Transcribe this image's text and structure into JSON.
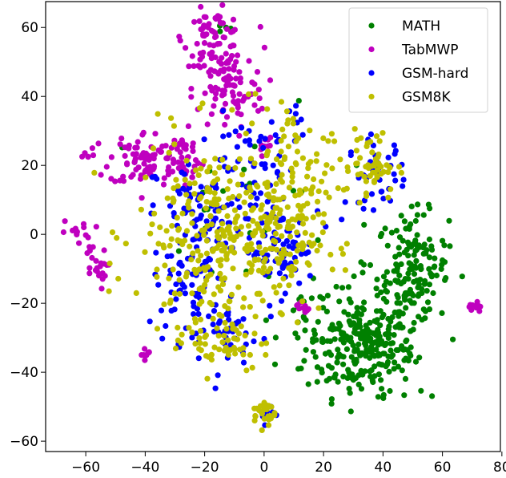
{
  "chart_data": {
    "type": "scatter",
    "title": "",
    "xlabel": "",
    "ylabel": "",
    "xlim": [
      -73.5,
      79.5
    ],
    "ylim": [
      -63,
      67.5
    ],
    "xticks": [
      -60,
      -40,
      -20,
      0,
      20,
      40,
      60,
      80
    ],
    "yticks": [
      -60,
      -40,
      -20,
      0,
      20,
      40,
      60
    ],
    "xtick_labels": [
      "−60",
      "−40",
      "−20",
      "0",
      "20",
      "40",
      "60",
      "80"
    ],
    "ytick_labels": [
      "−60",
      "−40",
      "−20",
      "0",
      "20",
      "40",
      "60"
    ],
    "grid": false,
    "legend": "top-right",
    "series": [
      {
        "name": "MATH",
        "color": "#008000",
        "clusters": [
          {
            "cx": 32,
            "cy": -33,
            "sx": 9,
            "sy": 7,
            "n": 200
          },
          {
            "cx": 50,
            "cy": -10,
            "sx": 6,
            "sy": 8,
            "n": 150
          },
          {
            "cx": 38,
            "cy": -30,
            "sx": 10,
            "sy": 10,
            "n": 80
          },
          {
            "cx": 15,
            "cy": -25,
            "sx": 5,
            "sy": 5,
            "n": 20
          },
          {
            "cx": -5,
            "cy": 10,
            "sx": 15,
            "sy": 15,
            "n": 25
          },
          {
            "cx": -15,
            "cy": 60,
            "sx": 3,
            "sy": 1,
            "n": 4
          }
        ]
      },
      {
        "name": "TabMWP",
        "color": "#bf00bf",
        "clusters": [
          {
            "cx": -17,
            "cy": 57,
            "sx": 5,
            "sy": 4,
            "n": 70
          },
          {
            "cx": -12,
            "cy": 42,
            "sx": 6,
            "sy": 6,
            "n": 90
          },
          {
            "cx": -40,
            "cy": 22,
            "sx": 6,
            "sy": 4,
            "n": 80
          },
          {
            "cx": -28,
            "cy": 22,
            "sx": 4,
            "sy": 4,
            "n": 40
          },
          {
            "cx": -57,
            "cy": -10,
            "sx": 2,
            "sy": 3,
            "n": 20
          },
          {
            "cx": -62,
            "cy": 0,
            "sx": 3,
            "sy": 2,
            "n": 15
          },
          {
            "cx": -60,
            "cy": 24,
            "sx": 1,
            "sy": 1,
            "n": 5
          },
          {
            "cx": -40,
            "cy": -35,
            "sx": 1,
            "sy": 1,
            "n": 8
          },
          {
            "cx": 71,
            "cy": -21,
            "sx": 1,
            "sy": 1,
            "n": 10
          },
          {
            "cx": 13,
            "cy": -21,
            "sx": 1,
            "sy": 1,
            "n": 10
          },
          {
            "cx": 0,
            "cy": 26,
            "sx": 1.5,
            "sy": 1.5,
            "n": 10
          }
        ]
      },
      {
        "name": "GSM-hard",
        "color": "#0000ff",
        "clusters": [
          {
            "cx": -20,
            "cy": 5,
            "sx": 8,
            "sy": 8,
            "n": 70
          },
          {
            "cx": -25,
            "cy": -15,
            "sx": 6,
            "sy": 8,
            "n": 70
          },
          {
            "cx": 5,
            "cy": -5,
            "sx": 6,
            "sy": 6,
            "n": 60
          },
          {
            "cx": 0,
            "cy": 15,
            "sx": 10,
            "sy": 10,
            "n": 50
          },
          {
            "cx": 38,
            "cy": 18,
            "sx": 5,
            "sy": 5,
            "n": 40
          },
          {
            "cx": -10,
            "cy": -30,
            "sx": 5,
            "sy": 5,
            "n": 30
          },
          {
            "cx": 0,
            "cy": -52,
            "sx": 1.5,
            "sy": 1.5,
            "n": 10
          },
          {
            "cx": 5,
            "cy": 30,
            "sx": 5,
            "sy": 5,
            "n": 15
          }
        ]
      },
      {
        "name": "GSM8K",
        "color": "#bfbf00",
        "clusters": [
          {
            "cx": -15,
            "cy": 0,
            "sx": 14,
            "sy": 14,
            "n": 280
          },
          {
            "cx": 5,
            "cy": 0,
            "sx": 8,
            "sy": 10,
            "n": 120
          },
          {
            "cx": 35,
            "cy": 20,
            "sx": 5,
            "sy": 5,
            "n": 60
          },
          {
            "cx": 0,
            "cy": -52,
            "sx": 2,
            "sy": 2,
            "n": 25
          },
          {
            "cx": -15,
            "cy": -30,
            "sx": 8,
            "sy": 5,
            "n": 60
          },
          {
            "cx": 10,
            "cy": 25,
            "sx": 8,
            "sy": 8,
            "n": 40
          }
        ]
      }
    ]
  }
}
